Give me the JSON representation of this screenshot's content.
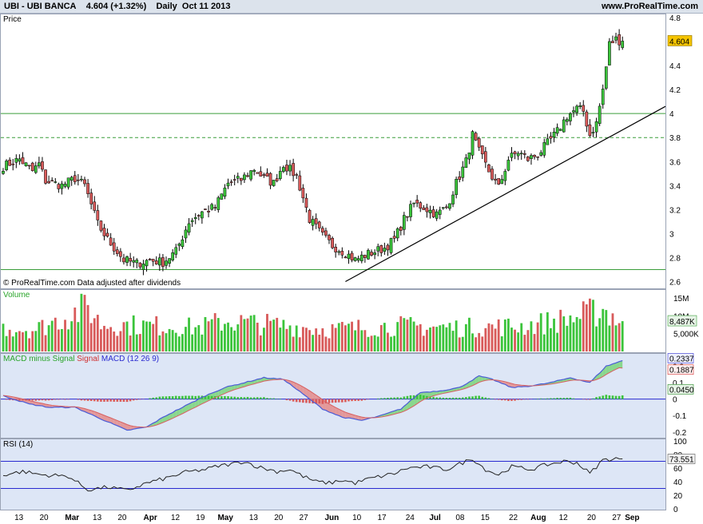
{
  "header": {
    "symbol": "UBI",
    "name": "UBI BANCA",
    "last": "4.604",
    "change": "(+1.32%)",
    "period": "Daily",
    "date": "Oct 11 2013",
    "brand": "www.ProRealTime.com"
  },
  "price_panel": {
    "label": "Price",
    "footer": "© ProRealTime.com  Data adjusted after dividends",
    "last_badge": "4.604"
  },
  "volume_panel": {
    "label": "Volume",
    "badge": "8,487K"
  },
  "macd_panel": {
    "label_1": "MACD minus Signal",
    "label_2": "Signal",
    "label_3": "MACD (12 26 9)",
    "badge_macd": "0.2337",
    "badge_signal": "0.1887",
    "badge_hist": "0.0450"
  },
  "rsi_panel": {
    "label": "RSI (14)",
    "badge": "73.551"
  },
  "colors": {
    "up": "#3bc43b",
    "down": "#d85a5a",
    "macd": "#4a5bd6",
    "signal": "#d86060",
    "rsi": "#222222",
    "level": "#2a2ad0",
    "bg": "#dde6f6"
  },
  "chart_data": [
    {
      "type": "candlestick",
      "title": "UBI - UBI BANCA",
      "ylabel": "Price",
      "ylim": [
        2.55,
        4.82
      ],
      "yticks": [
        2.6,
        2.8,
        3,
        3.2,
        3.4,
        3.6,
        3.8,
        4,
        4.2,
        4.4,
        4.8
      ],
      "x_tick_labels": [
        "13",
        "20",
        "Mar",
        "13",
        "20",
        "Apr",
        "12",
        "19",
        "May",
        "13",
        "20",
        "27",
        "Jun",
        "10",
        "17",
        "24",
        "Jul",
        "08",
        "15",
        "22",
        "Aug",
        "12",
        "20",
        "27",
        "Sep"
      ],
      "horizontal_levels": [
        {
          "value": 4.0,
          "style": "solid"
        },
        {
          "value": 3.8,
          "style": "dashed"
        },
        {
          "value": 2.7,
          "style": "solid"
        }
      ],
      "trendline": [
        {
          "x": "Jun",
          "y": 2.6
        },
        {
          "x": "27",
          "y": 4.06
        }
      ],
      "close_anchors": [
        [
          0,
          3.56
        ],
        [
          5,
          3.62
        ],
        [
          9,
          3.52
        ],
        [
          11,
          3.58
        ],
        [
          13,
          3.44
        ],
        [
          18,
          3.4
        ],
        [
          22,
          3.46
        ],
        [
          25,
          3.4
        ],
        [
          29,
          3.08
        ],
        [
          32,
          2.95
        ],
        [
          37,
          2.78
        ],
        [
          41,
          2.75
        ],
        [
          45,
          2.78
        ],
        [
          49,
          2.76
        ],
        [
          53,
          2.85
        ],
        [
          57,
          3.1
        ],
        [
          61,
          3.18
        ],
        [
          65,
          3.22
        ],
        [
          69,
          3.42
        ],
        [
          73,
          3.45
        ],
        [
          77,
          3.54
        ],
        [
          80,
          3.46
        ],
        [
          83,
          3.42
        ],
        [
          86,
          3.58
        ],
        [
          90,
          3.48
        ],
        [
          94,
          3.12
        ],
        [
          98,
          2.98
        ],
        [
          101,
          2.9
        ],
        [
          105,
          2.84
        ],
        [
          108,
          2.78
        ],
        [
          111,
          2.82
        ],
        [
          114,
          2.85
        ],
        [
          117,
          2.88
        ],
        [
          120,
          2.95
        ],
        [
          123,
          3.12
        ],
        [
          126,
          3.25
        ],
        [
          129,
          3.22
        ],
        [
          133,
          3.16
        ],
        [
          136,
          3.22
        ],
        [
          139,
          3.42
        ],
        [
          142,
          3.6
        ],
        [
          144,
          3.82
        ],
        [
          146,
          3.68
        ],
        [
          149,
          3.52
        ],
        [
          152,
          3.38
        ],
        [
          155,
          3.62
        ],
        [
          158,
          3.68
        ],
        [
          161,
          3.62
        ],
        [
          164,
          3.66
        ],
        [
          167,
          3.75
        ],
        [
          170,
          3.85
        ],
        [
          173,
          3.98
        ],
        [
          176,
          4.04
        ],
        [
          178,
          4.02
        ],
        [
          180,
          3.82
        ],
        [
          182,
          3.92
        ],
        [
          184,
          4.2
        ],
        [
          186,
          4.58
        ],
        [
          188,
          4.62
        ],
        [
          190,
          4.6
        ]
      ],
      "last_close": 4.604
    },
    {
      "type": "bar",
      "title": "Volume",
      "yticks": [
        "5,000K",
        "10M",
        "15M"
      ],
      "ylim": [
        0,
        17000000
      ],
      "volume_anchors": [
        [
          0,
          7.0
        ],
        [
          10,
          6.5
        ],
        [
          26,
          13.0
        ],
        [
          30,
          8.0
        ],
        [
          50,
          7.5
        ],
        [
          60,
          7.0
        ],
        [
          68,
          9.0
        ],
        [
          100,
          6.5
        ],
        [
          120,
          7.5
        ],
        [
          140,
          7.0
        ],
        [
          160,
          7.5
        ],
        [
          176,
          10.0
        ],
        [
          184,
          12.5
        ],
        [
          190,
          8.487
        ]
      ]
    },
    {
      "type": "line",
      "title": "MACD (12 26 9)",
      "series_names": [
        "MACD minus Signal",
        "Signal",
        "MACD (12 26 9)"
      ],
      "ylim": [
        -0.23,
        0.27
      ],
      "yticks": [
        -0.2,
        -0.1,
        0,
        0.1,
        0.2
      ],
      "macd_anchors": [
        [
          0,
          0.02
        ],
        [
          8,
          -0.03
        ],
        [
          14,
          -0.05
        ],
        [
          22,
          -0.05
        ],
        [
          30,
          -0.12
        ],
        [
          38,
          -0.19
        ],
        [
          44,
          -0.17
        ],
        [
          50,
          -0.1
        ],
        [
          56,
          -0.04
        ],
        [
          62,
          0.02
        ],
        [
          68,
          0.07
        ],
        [
          74,
          0.1
        ],
        [
          80,
          0.13
        ],
        [
          86,
          0.12
        ],
        [
          92,
          0.03
        ],
        [
          98,
          -0.06
        ],
        [
          104,
          -0.11
        ],
        [
          110,
          -0.13
        ],
        [
          116,
          -0.1
        ],
        [
          122,
          -0.06
        ],
        [
          128,
          0.04
        ],
        [
          134,
          0.05
        ],
        [
          140,
          0.07
        ],
        [
          146,
          0.14
        ],
        [
          150,
          0.12
        ],
        [
          156,
          0.07
        ],
        [
          162,
          0.08
        ],
        [
          168,
          0.1
        ],
        [
          174,
          0.13
        ],
        [
          180,
          0.1
        ],
        [
          185,
          0.2
        ],
        [
          190,
          0.2337
        ]
      ],
      "signal_last": 0.1887,
      "hist_last": 0.045
    },
    {
      "type": "line",
      "title": "RSI (14)",
      "ylim": [
        0,
        100
      ],
      "yticks": [
        0,
        20,
        40,
        60,
        80,
        100
      ],
      "levels": [
        30,
        70
      ],
      "rsi_anchors": [
        [
          0,
          50
        ],
        [
          6,
          55
        ],
        [
          12,
          50
        ],
        [
          20,
          48
        ],
        [
          26,
          28
        ],
        [
          32,
          32
        ],
        [
          38,
          27
        ],
        [
          44,
          38
        ],
        [
          50,
          45
        ],
        [
          56,
          54
        ],
        [
          62,
          58
        ],
        [
          66,
          63
        ],
        [
          70,
          66
        ],
        [
          74,
          70
        ],
        [
          78,
          62
        ],
        [
          84,
          55
        ],
        [
          88,
          58
        ],
        [
          92,
          48
        ],
        [
          96,
          40
        ],
        [
          100,
          38
        ],
        [
          104,
          42
        ],
        [
          108,
          38
        ],
        [
          112,
          44
        ],
        [
          116,
          48
        ],
        [
          120,
          52
        ],
        [
          124,
          60
        ],
        [
          130,
          62
        ],
        [
          136,
          58
        ],
        [
          140,
          66
        ],
        [
          144,
          74
        ],
        [
          148,
          58
        ],
        [
          152,
          50
        ],
        [
          156,
          62
        ],
        [
          162,
          58
        ],
        [
          166,
          64
        ],
        [
          172,
          70
        ],
        [
          176,
          68
        ],
        [
          180,
          52
        ],
        [
          184,
          72
        ],
        [
          188,
          74
        ],
        [
          190,
          73.551
        ]
      ],
      "last": 73.551
    }
  ]
}
